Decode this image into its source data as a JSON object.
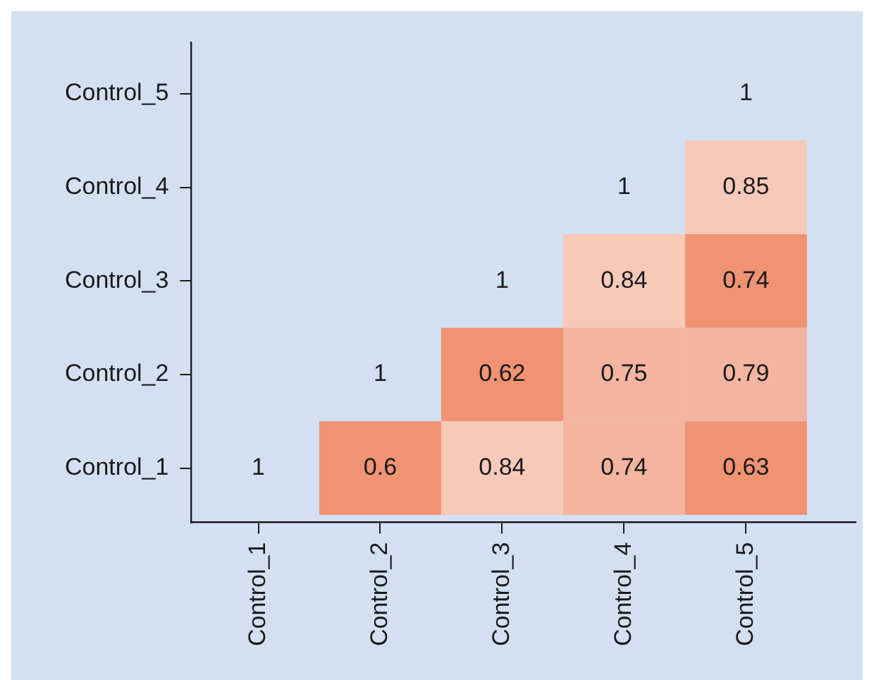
{
  "chart_data": {
    "type": "heatmap",
    "categories": [
      "Control_1",
      "Control_2",
      "Control_3",
      "Control_4",
      "Control_5"
    ],
    "y_categories": [
      "Control_5",
      "Control_4",
      "Control_3",
      "Control_2",
      "Control_1"
    ],
    "cells": [
      [
        null,
        null,
        null,
        null,
        1
      ],
      [
        null,
        null,
        null,
        1,
        0.85
      ],
      [
        null,
        null,
        1,
        0.84,
        0.74
      ],
      [
        null,
        1,
        0.62,
        0.75,
        0.79
      ],
      [
        1,
        0.6,
        0.84,
        0.74,
        0.63
      ]
    ],
    "colors": [
      [
        null,
        null,
        null,
        null,
        null
      ],
      [
        null,
        null,
        null,
        null,
        "#f6c9b9"
      ],
      [
        null,
        null,
        null,
        "#f6c9b9",
        "#ef9373"
      ],
      [
        null,
        null,
        "#ef9373",
        "#f3b4a0",
        "#f3b4a0"
      ],
      [
        null,
        "#ef9373",
        "#f6c9b9",
        "#f3b4a0",
        "#ef9373"
      ]
    ],
    "data_labels": true
  }
}
